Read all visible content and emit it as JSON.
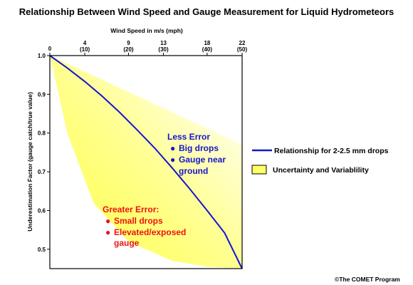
{
  "chart_data": {
    "type": "line",
    "title": "Relationship Between Wind Speed and Gauge Measurement for Liquid Hydrometeors",
    "xlabel": "Wind Speed in m/s (mph)",
    "ylabel": "Underestimation Factor (gauge catch/true value)",
    "xlim": [
      0,
      22
    ],
    "ylim": [
      0.45,
      1.0
    ],
    "x_ticks": [
      {
        "value": 0,
        "label": "0",
        "sub": ""
      },
      {
        "value": 4,
        "label": "4",
        "sub": "(10)"
      },
      {
        "value": 9,
        "label": "9",
        "sub": "(20)"
      },
      {
        "value": 13,
        "label": "13",
        "sub": "(30)"
      },
      {
        "value": 18,
        "label": "18",
        "sub": "(40)"
      },
      {
        "value": 22,
        "label": "22",
        "sub": "(50)"
      }
    ],
    "y_ticks": [
      {
        "value": 1.0,
        "label": "1.0"
      },
      {
        "value": 0.9,
        "label": "0.9"
      },
      {
        "value": 0.8,
        "label": "0.8"
      },
      {
        "value": 0.7,
        "label": "0.7"
      },
      {
        "value": 0.6,
        "label": "0.6"
      },
      {
        "value": 0.5,
        "label": "0.5"
      }
    ],
    "series": [
      {
        "name": "Relationship for 2-2.5 mm drops",
        "color": "#1515cc",
        "x": [
          0,
          2,
          4,
          6,
          8,
          10,
          12,
          14,
          16,
          18,
          20,
          22
        ],
        "y": [
          1.0,
          0.968,
          0.933,
          0.895,
          0.853,
          0.808,
          0.761,
          0.71,
          0.656,
          0.6,
          0.542,
          0.45
        ]
      }
    ],
    "band": {
      "name": "Uncertainty and Variablility",
      "color": "#ffff66",
      "upper": {
        "x": [
          0,
          22
        ],
        "y": [
          1.0,
          0.77
        ]
      },
      "lower": {
        "x": [
          0,
          2,
          5,
          9,
          14,
          18,
          22
        ],
        "y": [
          1.0,
          0.8,
          0.62,
          0.52,
          0.47,
          0.455,
          0.45
        ]
      }
    },
    "legend_position": "right"
  },
  "annotations": {
    "less_error": {
      "heading": "Less Error",
      "items": [
        "Big drops",
        "Gauge near",
        "ground"
      ],
      "color": "#1515cc"
    },
    "greater_error": {
      "heading": "Greater Error:",
      "items": [
        "Small drops",
        "Elevated/exposed",
        "gauge"
      ],
      "color": "#ee1111"
    }
  },
  "credit": "©The COMET Program"
}
